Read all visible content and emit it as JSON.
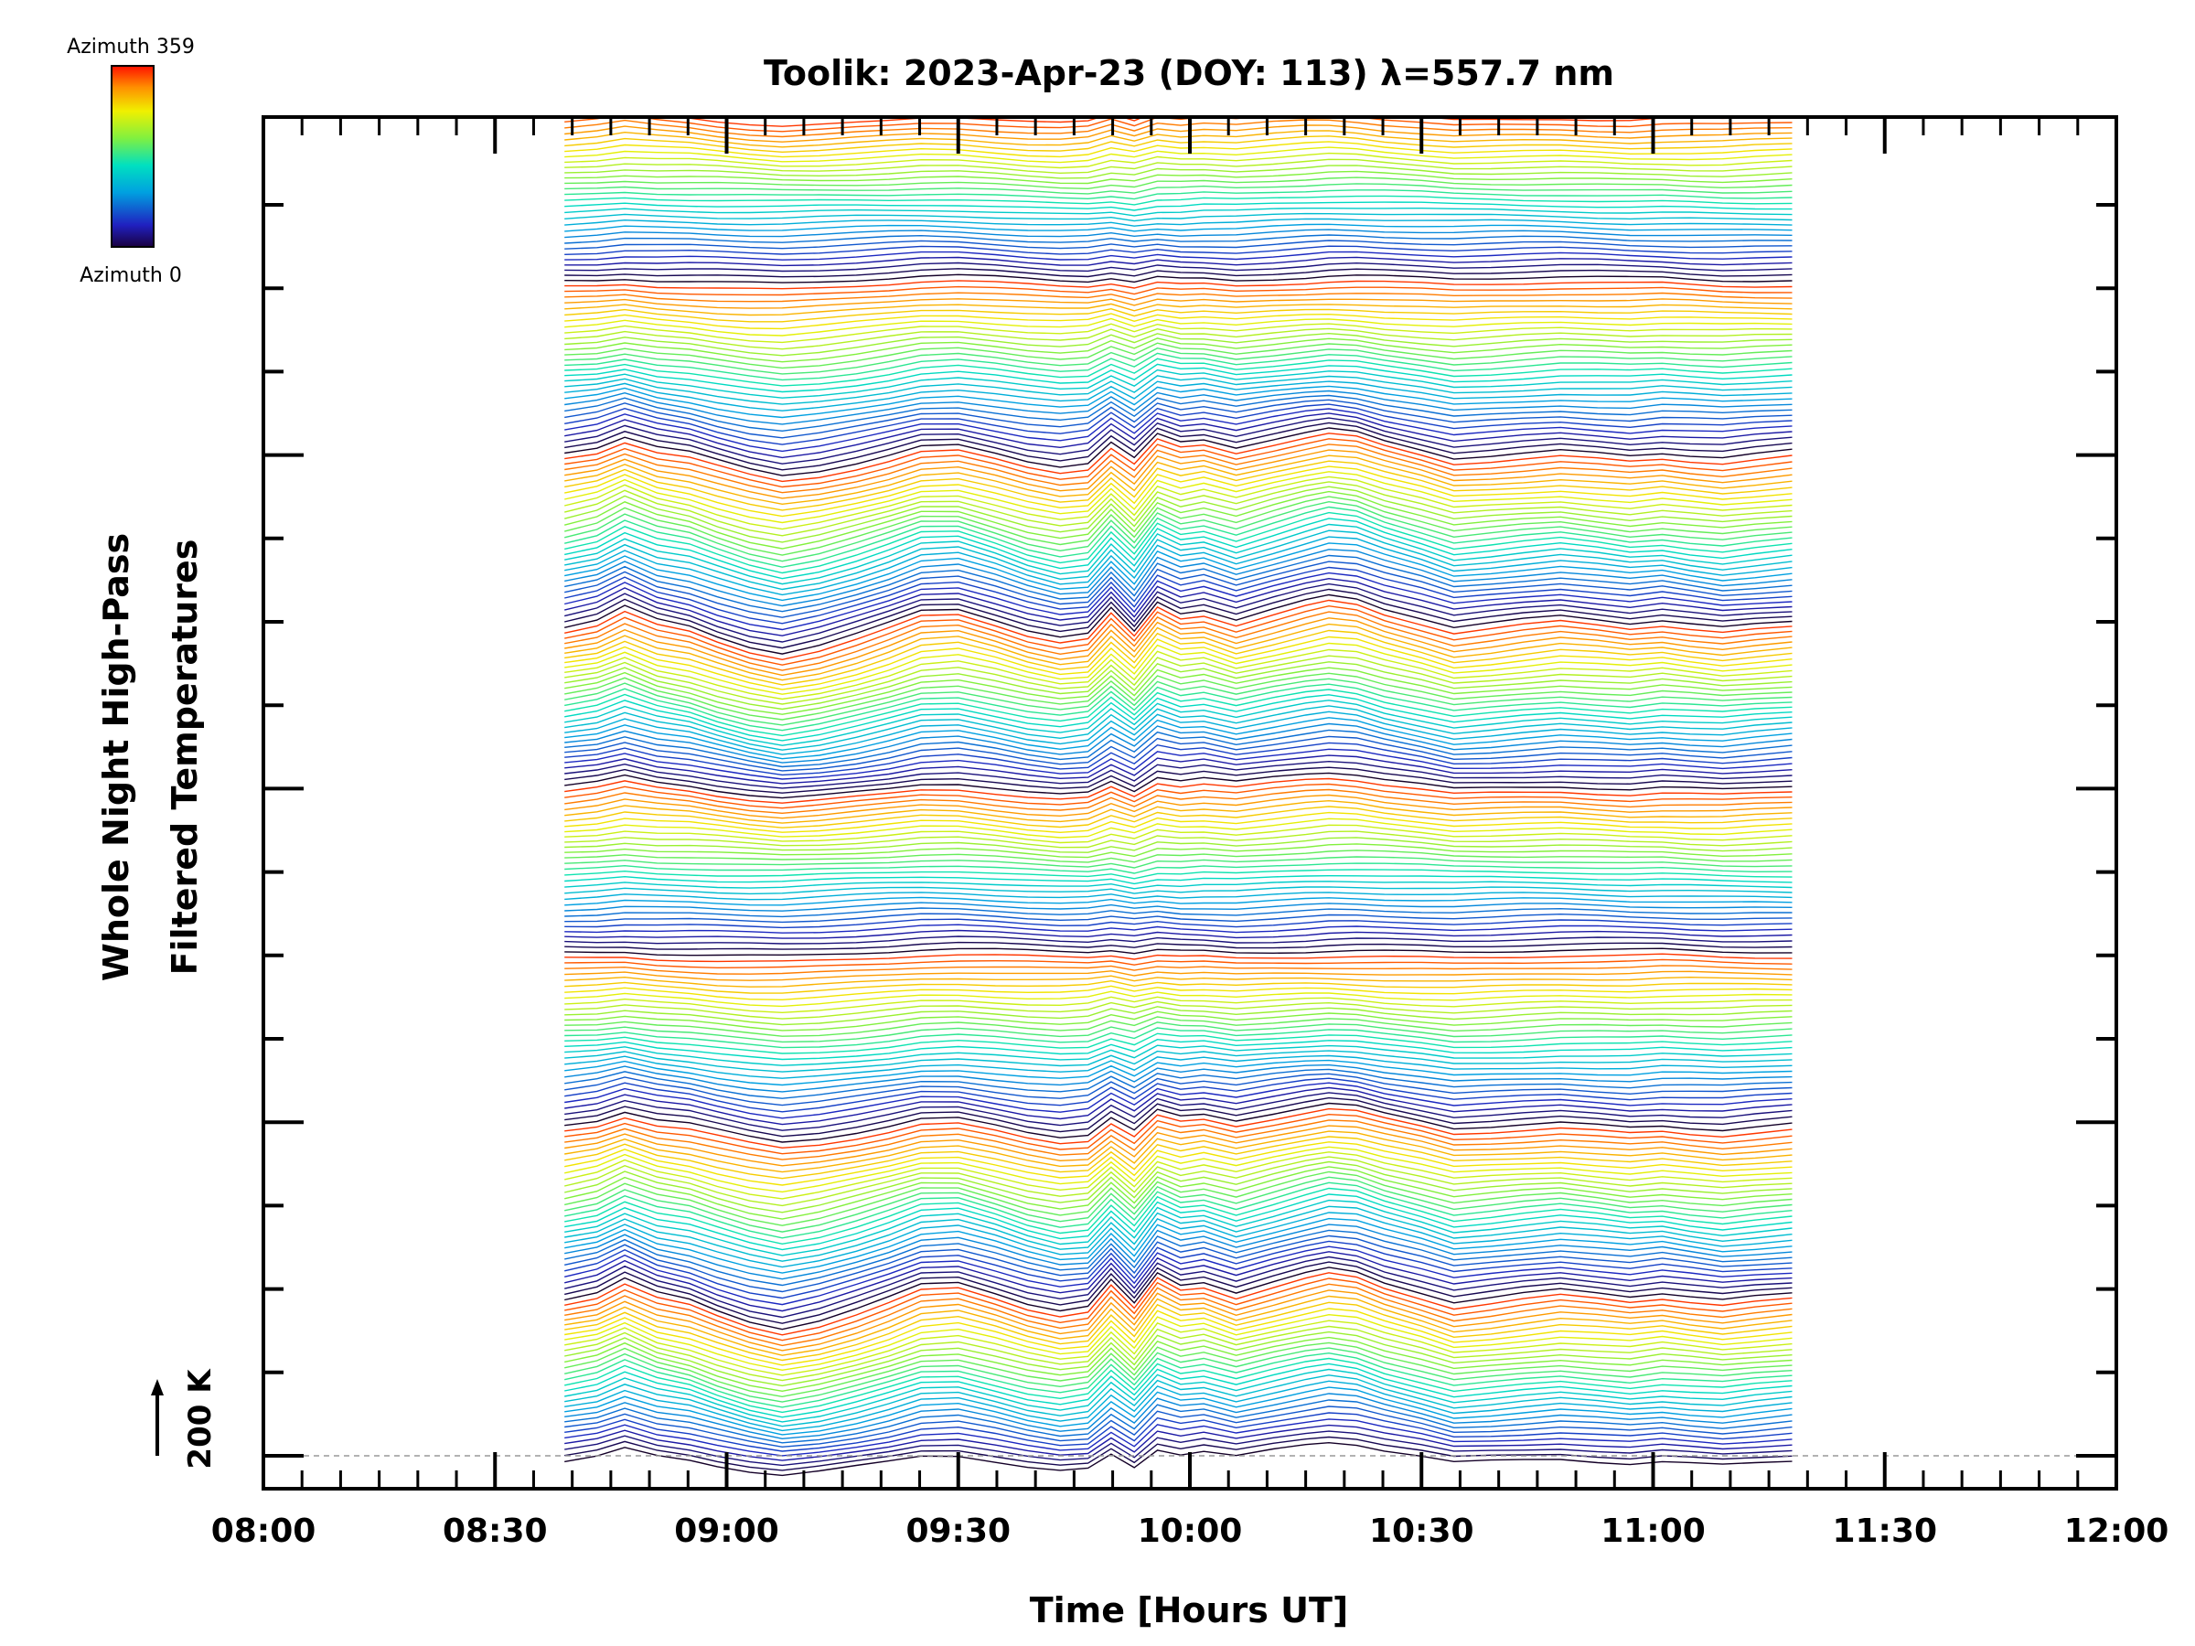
{
  "chart_data": {
    "type": "line",
    "title": "Toolik: 2023-Apr-23 (DOY: 113) λ=557.7 nm",
    "xlabel": "Time [Hours UT]",
    "ylabel_line1": "Whole Night High-Pass",
    "ylabel_line2": "Filtered Temperatures",
    "x_tick_labels": [
      "08:00",
      "08:30",
      "09:00",
      "09:30",
      "10:00",
      "10:30",
      "11:00",
      "11:30",
      "12:00"
    ],
    "xlim_hours": [
      8.0,
      12.0
    ],
    "data_start_hours": 8.65,
    "data_end_hours": 11.3,
    "scale_bar_label": "200 K",
    "colorbar": {
      "top_label": "Azimuth  359",
      "bottom_label": "Azimuth  0",
      "colormap": "rainbow"
    },
    "series_count": 240,
    "trace_offset_K": 200,
    "baseline_dashed": true,
    "common_signal": {
      "time_hours": [
        8.65,
        8.72,
        8.78,
        8.85,
        8.92,
        8.98,
        9.05,
        9.12,
        9.2,
        9.28,
        9.35,
        9.42,
        9.5,
        9.58,
        9.65,
        9.72,
        9.78,
        9.83,
        9.88,
        9.93,
        9.98,
        10.03,
        10.1,
        10.18,
        10.25,
        10.3,
        10.36,
        10.42,
        10.5,
        10.57,
        10.65,
        10.72,
        10.8,
        10.88,
        10.95,
        11.02,
        11.08,
        11.15,
        11.22,
        11.3
      ],
      "value_K": [
        -30,
        -10,
        30,
        -10,
        -30,
        -60,
        -90,
        -110,
        -90,
        -60,
        -30,
        5,
        10,
        -20,
        -50,
        -70,
        -60,
        15,
        -50,
        40,
        10,
        20,
        -10,
        20,
        45,
        60,
        50,
        20,
        -10,
        -40,
        -30,
        -20,
        -10,
        -20,
        -30,
        -20,
        -30,
        -40,
        -30,
        -20
      ]
    }
  }
}
